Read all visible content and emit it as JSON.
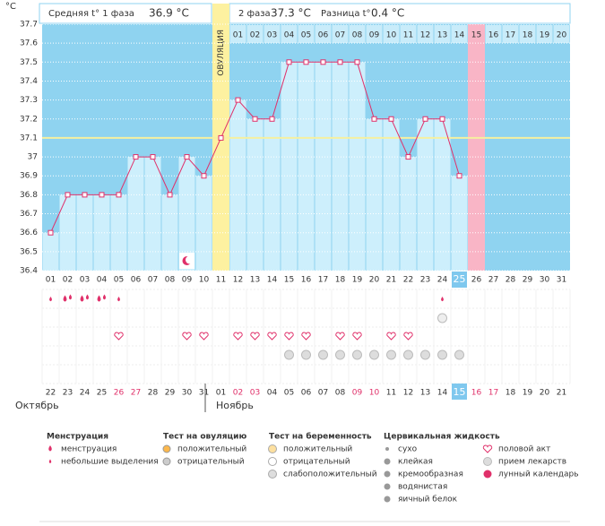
{
  "header": {
    "unit": "°C",
    "phase1_label": "Средняя t° 1 фаза",
    "phase1_value": "36.9 °C",
    "phase2_label": "2 фаза",
    "phase2_value": "37.3 °C",
    "diff_label": "Разница t°",
    "diff_value": "0.4 °C"
  },
  "chart_data": {
    "type": "line",
    "color": "#e0306a",
    "coverline": 37.1,
    "ylim": [
      36.4,
      37.7
    ],
    "yticks": [
      36.4,
      36.5,
      36.6,
      36.7,
      36.8,
      36.9,
      37,
      37.1,
      37.2,
      37.3,
      37.4,
      37.5,
      37.6,
      37.7
    ],
    "grid": true,
    "categories": [
      "01",
      "02",
      "03",
      "04",
      "05",
      "06",
      "07",
      "08",
      "09",
      "10",
      "11",
      "12",
      "13",
      "14",
      "15",
      "16",
      "17",
      "18",
      "19",
      "20",
      "21",
      "22",
      "23",
      "24",
      "25",
      "26",
      "27",
      "28",
      "29",
      "30",
      "31"
    ],
    "values": [
      36.6,
      36.8,
      36.8,
      36.8,
      36.8,
      37,
      37,
      36.8,
      37,
      36.9,
      37.1,
      37.3,
      37.2,
      37.2,
      37.5,
      37.5,
      37.5,
      37.5,
      37.5,
      37.2,
      37.2,
      37,
      37.2,
      37.2,
      36.9,
      null,
      null,
      null,
      null,
      null,
      null
    ],
    "ovulation_day": "11",
    "ovulation_label": "ОВУЛЯЦИЯ",
    "expected_day": "26",
    "today": "25",
    "phase_days": [
      "01",
      "02",
      "03",
      "04",
      "05",
      "06",
      "07",
      "08",
      "09",
      "10",
      "11",
      "12",
      "13",
      "14",
      "15",
      "16",
      "17",
      "18",
      "19",
      "20"
    ],
    "lunar": [
      "09"
    ]
  },
  "marks": {
    "menstruation": [
      "02",
      "03",
      "04"
    ],
    "spotting": [
      "01",
      "05",
      "24"
    ],
    "pregnancy_negative": [
      "24"
    ],
    "intercourse": [
      "05",
      "09",
      "10",
      "12",
      "13",
      "14",
      "15",
      "16",
      "18",
      "19",
      "21",
      "22"
    ],
    "medication": [
      "15",
      "16",
      "17",
      "18",
      "19",
      "20",
      "21",
      "22",
      "23",
      "24",
      "25"
    ]
  },
  "calendar": {
    "today": "15",
    "months": [
      {
        "name": "Октябрь",
        "dates": [
          "22",
          "23",
          "24",
          "25",
          "26",
          "27",
          "28",
          "29",
          "30",
          "31"
        ],
        "weekends": [
          "26",
          "27"
        ]
      },
      {
        "name": "Ноябрь",
        "dates": [
          "01",
          "02",
          "03",
          "04",
          "05",
          "06",
          "07",
          "08",
          "09",
          "10",
          "11",
          "12",
          "13",
          "14",
          "15",
          "16",
          "17",
          "18",
          "19",
          "20",
          "21"
        ],
        "weekends": [
          "02",
          "03",
          "09",
          "10",
          "16",
          "17"
        ]
      }
    ]
  },
  "legend": [
    {
      "title": "Менструация",
      "items": [
        "менструация",
        "небольшие выделения"
      ]
    },
    {
      "title": "Тест на овуляцию",
      "items": [
        "положительный",
        "отрицательный"
      ]
    },
    {
      "title": "Тест на беременность",
      "items": [
        "положительный",
        "отрицательный",
        "слабоположительный"
      ]
    },
    {
      "title": "Цервикальная жидкость",
      "items": [
        "сухо",
        "клейкая",
        "кремообразная",
        "водянистая",
        "яичный белок"
      ]
    },
    {
      "title": "",
      "items": [
        "половой акт",
        "прием лекарств",
        "лунный календарь"
      ]
    }
  ]
}
